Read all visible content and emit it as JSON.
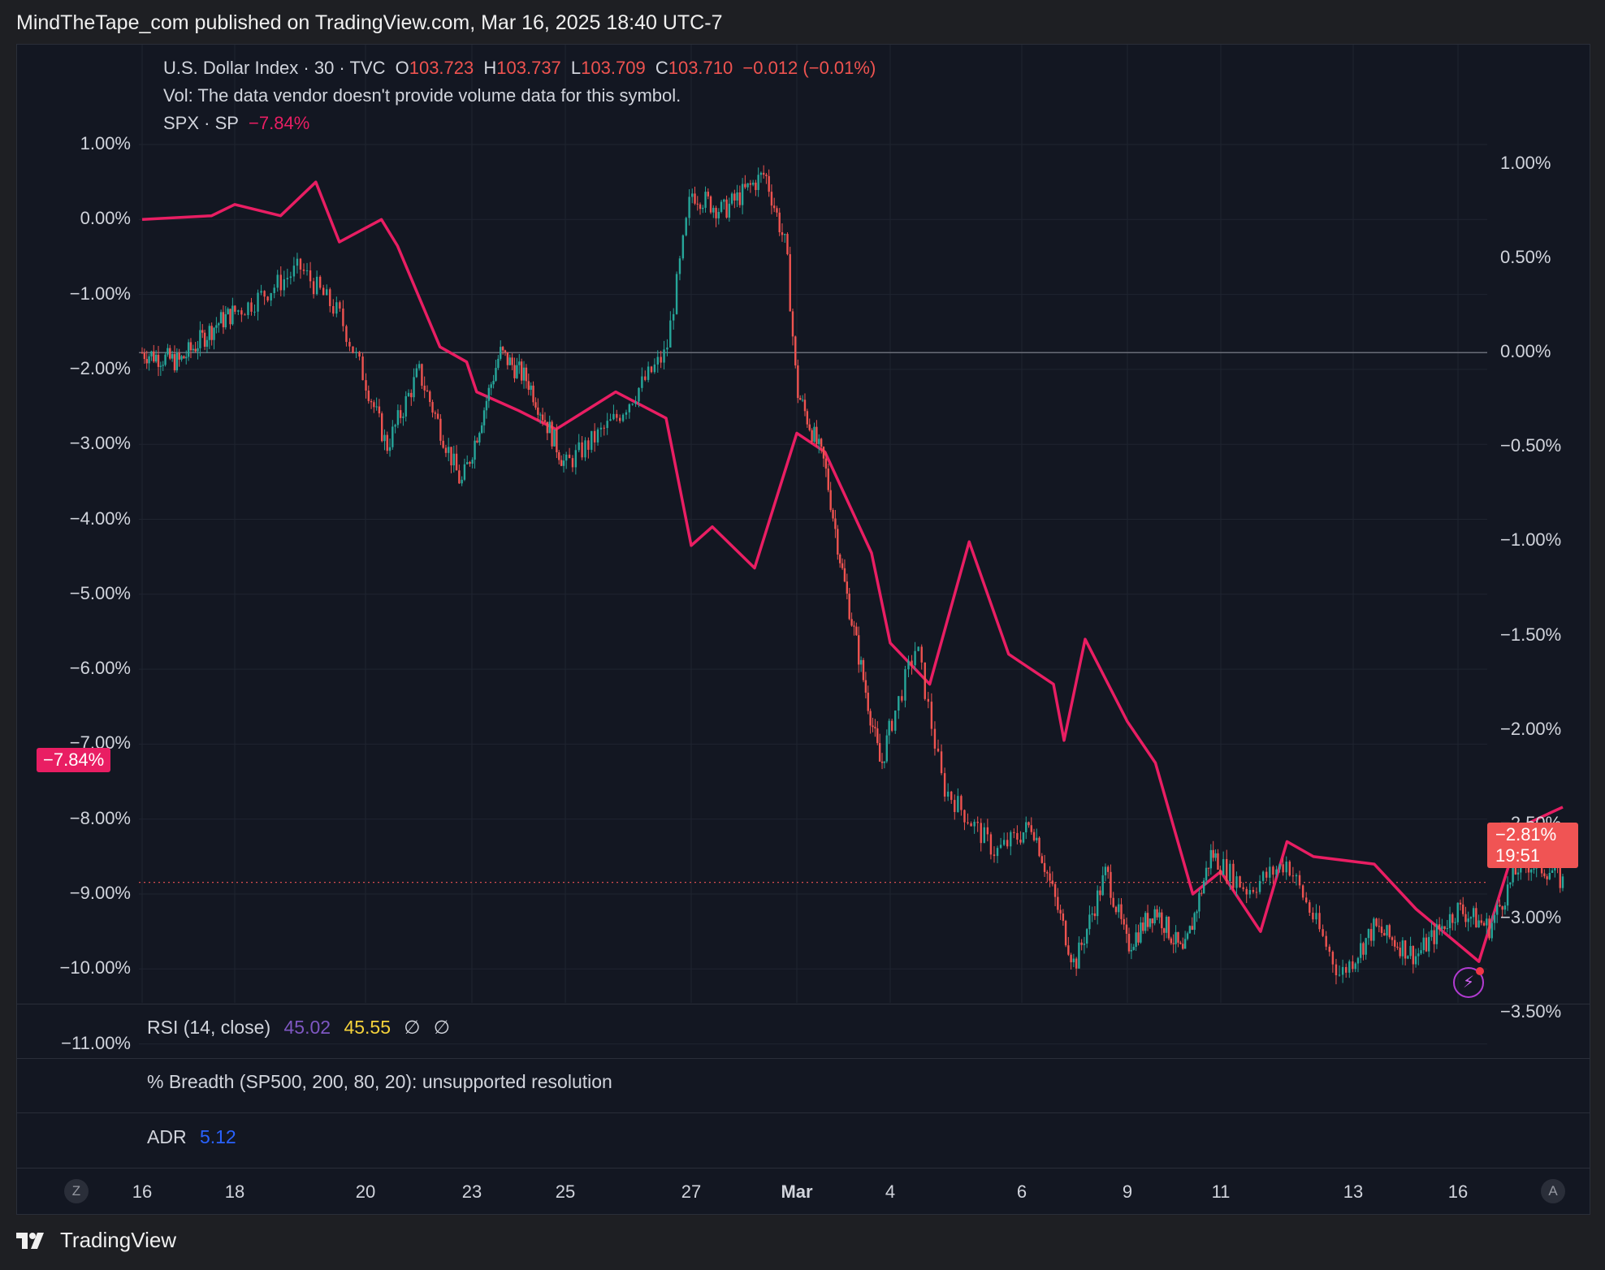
{
  "header": {
    "published": "MindTheTape_com published on TradingView.com, Mar 16, 2025 18:40 UTC-7"
  },
  "legend": {
    "symbol": "U.S. Dollar Index · 30 · TVC",
    "o_label": "O",
    "o_value": "103.723",
    "h_label": "H",
    "h_value": "103.737",
    "l_label": "L",
    "l_value": "103.709",
    "c_label": "C",
    "c_value": "103.710",
    "change": "−0.012 (−0.01%)",
    "vol": "Vol: The data vendor doesn't provide volume data for this symbol.",
    "compare_symbol": "SPX · SP",
    "compare_value": "−7.84%"
  },
  "indicators": {
    "rsi_label": "RSI (14, close)",
    "rsi_value1": "45.02",
    "rsi_value2": "45.55",
    "rsi_null1": "∅",
    "rsi_null2": "∅",
    "breadth_label": "% Breadth (SP500, 200, 80, 20): unsupported resolution",
    "adr_label": "ADR",
    "adr_value": "5.12"
  },
  "badges": {
    "left_value": "−7.84%",
    "right_value": "−2.81%",
    "right_countdown": "19:51"
  },
  "bottom": {
    "left_circle": "Z",
    "right_circle": "A"
  },
  "footer": {
    "brand": "TradingView"
  },
  "colors": {
    "spx_line": "#e91e63",
    "up": "#26a69a",
    "down": "#ef5350",
    "rsi1": "#7e57c2",
    "rsi2": "#f5d23b",
    "adr": "#2962ff",
    "bg": "#131722"
  },
  "chart_data": {
    "type": "line",
    "x_tick_labels": [
      "16",
      "18",
      "20",
      "23",
      "25",
      "27",
      "Mar",
      "4",
      "6",
      "9",
      "11",
      "13",
      "16"
    ],
    "y_left_ticks": [
      "1.00%",
      "0.00%",
      "−1.00%",
      "−2.00%",
      "−3.00%",
      "−4.00%",
      "−5.00%",
      "−6.00%",
      "−7.00%",
      "−8.00%",
      "−9.00%",
      "−10.00%",
      "−11.00%"
    ],
    "y_right_ticks": [
      "1.00%",
      "0.50%",
      "0.00%",
      "−0.50%",
      "−1.00%",
      "−1.50%",
      "−2.00%",
      "−2.50%",
      "−3.00%",
      "−3.50%"
    ],
    "ylim_left": [
      -11.0,
      1.0
    ],
    "ylim_right": [
      -3.5,
      1.0
    ],
    "series": [
      {
        "name": "SPX · SP",
        "axis": "left",
        "x": [
          0,
          0.75,
          1,
          1.35,
          1.62,
          1.8,
          2.15,
          2.3,
          2.7,
          2.95,
          3.05,
          3.5,
          3.9,
          4.4,
          4.8,
          5.0,
          5.2,
          5.6,
          6.0,
          6.3,
          6.8,
          7.0,
          7.3,
          7.6,
          7.9,
          8.3,
          8.4,
          8.6,
          9.0,
          9.3,
          9.7,
          10.0,
          10.3,
          10.5,
          10.7,
          11.2,
          11.6,
          12.2,
          12.6,
          13.0
        ],
        "y": [
          0.0,
          0.05,
          0.2,
          0.05,
          0.5,
          -0.3,
          0.0,
          -0.35,
          -1.7,
          -1.9,
          -2.3,
          -2.55,
          -2.8,
          -2.3,
          -2.65,
          -4.35,
          -4.1,
          -4.65,
          -2.85,
          -3.1,
          -4.45,
          -5.65,
          -6.2,
          -4.3,
          -5.8,
          -6.2,
          -6.95,
          -5.6,
          -6.7,
          -7.25,
          -9.0,
          -8.7,
          -9.5,
          -8.3,
          -8.5,
          -8.6,
          -9.2,
          -9.9,
          -8.1,
          -7.84
        ]
      },
      {
        "name": "U.S. Dollar Index · 30 · TVC",
        "axis": "right",
        "x": [
          0,
          0.4,
          0.8,
          1.1,
          1.5,
          1.8,
          2.2,
          2.5,
          2.9,
          3.3,
          3.6,
          4.0,
          4.4,
          4.8,
          5.0,
          5.3,
          5.7,
          5.9,
          6.0,
          6.3,
          6.5,
          6.9,
          7.2,
          7.4,
          7.8,
          8.1,
          8.5,
          8.8,
          9.0,
          9.3,
          9.6,
          9.9,
          10.2,
          10.5,
          10.9,
          11.2,
          11.6,
          12.0,
          12.3,
          12.6,
          12.9,
          13.0
        ],
        "y": [
          0.0,
          -0.05,
          0.15,
          0.25,
          0.45,
          0.2,
          -0.5,
          -0.1,
          -0.7,
          0.0,
          -0.15,
          -0.6,
          -0.35,
          0.0,
          0.85,
          0.75,
          0.95,
          0.55,
          -0.2,
          -0.6,
          -1.2,
          -2.2,
          -1.55,
          -2.3,
          -2.65,
          -2.5,
          -3.25,
          -2.75,
          -3.15,
          -2.95,
          -3.2,
          -2.65,
          -2.85,
          -2.7,
          -3.3,
          -3.05,
          -3.2,
          -2.95,
          -3.05,
          -2.7,
          -2.75,
          -2.81
        ]
      }
    ],
    "grid": true,
    "last_price_line": -2.81
  }
}
